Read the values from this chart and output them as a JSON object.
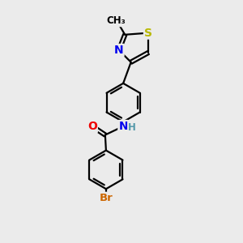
{
  "background_color": "#ebebeb",
  "bond_color": "#000000",
  "bond_width": 1.6,
  "atom_colors": {
    "S": "#b8b800",
    "N": "#0000ee",
    "O": "#ee0000",
    "Br": "#cc6600",
    "H": "#5599aa",
    "C": "#000000"
  },
  "font_size": 8.5,
  "fig_width": 3.0,
  "fig_height": 3.0,
  "dpi": 100,
  "xlim": [
    0,
    10
  ],
  "ylim": [
    0,
    14
  ]
}
